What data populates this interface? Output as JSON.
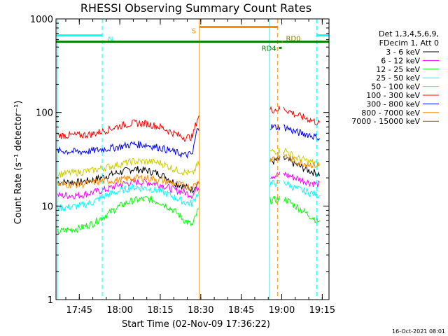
{
  "chart_data": {
    "type": "line",
    "title": "RHESSI Observing Summary Count Rates",
    "xlabel": "Start Time (02-Nov-09 17:36:22)",
    "ylabel": "Count Rate (s⁻¹ detector⁻¹)",
    "y_scale": "log",
    "ylim": [
      1,
      1000
    ],
    "xlim": [
      "17:36:22",
      "19:17:30"
    ],
    "x_ticks": [
      "17:45",
      "18:00",
      "18:15",
      "18:30",
      "18:45",
      "19:00",
      "19:15"
    ],
    "y_ticks": [
      "1",
      "10",
      "100",
      "1000"
    ],
    "legend_header": [
      "Det 1,3,4,5,6,9,",
      "FDecim 1, Att 0"
    ],
    "legend_position": "right",
    "footer_date": "16-Oct-2021 08:01",
    "data_gaps": [
      [
        "18:29:30",
        "18:55:30"
      ],
      [
        "18:59:30",
        "19:00:30"
      ]
    ],
    "series": [
      {
        "name": "3 - 6 keV",
        "color": "#000000",
        "x": [
          "17:37",
          "17:45",
          "17:50",
          "17:55",
          "18:00",
          "18:05",
          "18:10",
          "18:15",
          "18:20",
          "18:24",
          "18:27",
          "18:29",
          "19:01",
          "19:05",
          "19:10",
          "19:14"
        ],
        "values": [
          18,
          18,
          19,
          21,
          23,
          25,
          24,
          22,
          18,
          16,
          15,
          18,
          32,
          28,
          24,
          22
        ]
      },
      {
        "name": "6 - 12 keV",
        "color": "#ff00ff",
        "x": [
          "17:37",
          "17:45",
          "17:50",
          "17:55",
          "18:00",
          "18:05",
          "18:10",
          "18:15",
          "18:20",
          "18:24",
          "18:27",
          "18:29",
          "19:01",
          "19:05",
          "19:10",
          "19:14"
        ],
        "values": [
          13,
          13,
          14,
          15,
          17,
          18,
          18,
          17,
          15,
          14,
          13,
          16,
          22,
          20,
          18,
          17
        ]
      },
      {
        "name": "12 - 25 keV",
        "color": "#00ff00",
        "x": [
          "17:37",
          "17:40",
          "17:45",
          "17:50",
          "17:55",
          "18:00",
          "18:05",
          "18:10",
          "18:15",
          "18:20",
          "18:24",
          "18:27",
          "18:29",
          "19:01",
          "19:05",
          "19:10",
          "19:14"
        ],
        "values": [
          5.3,
          5.5,
          5.8,
          6.5,
          8,
          10,
          11.5,
          12,
          11,
          9,
          7,
          6.2,
          9,
          12,
          10,
          8,
          6.8
        ]
      },
      {
        "name": "25 - 50 keV",
        "color": "#00ffff",
        "x": [
          "17:37",
          "17:45",
          "17:50",
          "17:55",
          "18:00",
          "18:05",
          "18:10",
          "18:15",
          "18:20",
          "18:24",
          "18:27",
          "18:29",
          "19:01",
          "19:05",
          "19:10",
          "19:14"
        ],
        "values": [
          9.5,
          10,
          11,
          13,
          14.5,
          16,
          15.5,
          14.5,
          12.5,
          11,
          10.5,
          14,
          18,
          15.5,
          14,
          13
        ]
      },
      {
        "name": "50 - 100 keV",
        "color": "#cccc00",
        "x": [
          "17:37",
          "17:45",
          "17:50",
          "17:55",
          "18:00",
          "18:05",
          "18:10",
          "18:15",
          "18:20",
          "18:24",
          "18:27",
          "18:29",
          "19:01",
          "19:05",
          "19:10",
          "19:14"
        ],
        "values": [
          22,
          23,
          24,
          26,
          28,
          30,
          30,
          29,
          25,
          23,
          22,
          28,
          40,
          33,
          30,
          28
        ]
      },
      {
        "name": "100 - 300 keV",
        "color": "#ff0000",
        "x": [
          "17:37",
          "17:45",
          "17:50",
          "17:55",
          "18:00",
          "18:05",
          "18:10",
          "18:15",
          "18:20",
          "18:24",
          "18:27",
          "18:29",
          "19:01",
          "19:05",
          "19:10",
          "19:14"
        ],
        "values": [
          57,
          57,
          59,
          65,
          72,
          77,
          76,
          70,
          60,
          54,
          55,
          90,
          110,
          95,
          85,
          76
        ]
      },
      {
        "name": "300 - 800 keV",
        "color": "#0000ff",
        "x": [
          "17:37",
          "17:45",
          "17:50",
          "17:55",
          "18:00",
          "18:05",
          "18:10",
          "18:15",
          "18:20",
          "18:24",
          "18:27",
          "18:29",
          "19:01",
          "19:05",
          "19:10",
          "19:14"
        ],
        "values": [
          39,
          38,
          39,
          41,
          43,
          46,
          45,
          42,
          38,
          35,
          36,
          70,
          70,
          62,
          58,
          53
        ]
      },
      {
        "name": "800 - 7000 keV",
        "color": "#ff8c00",
        "x": [
          "17:37",
          "17:45",
          "17:50",
          "17:55",
          "18:00",
          "18:05",
          "18:10",
          "18:15",
          "18:20",
          "18:24",
          "18:27",
          "18:29",
          "19:01",
          "19:05",
          "19:10",
          "19:14"
        ],
        "values": [
          17,
          17,
          18,
          18.5,
          19,
          20,
          20,
          19,
          17.5,
          16.5,
          16,
          18,
          35,
          30,
          28,
          27
        ]
      },
      {
        "name": "7000 - 15000 keV",
        "color": "#8b6914",
        "x": [],
        "values": []
      }
    ],
    "flags": [
      {
        "label": "N",
        "color": "#00ffff",
        "level": 665,
        "start": "17:36:22",
        "end": "17:53:30",
        "dashed_end": true
      },
      {
        "label": "",
        "color": "#00ffff",
        "level": 665,
        "start": "19:13:00",
        "end": "19:17:30",
        "dashed_start": true
      },
      {
        "label": "S",
        "color": "#ff8c00",
        "level": 820,
        "start": "18:29:30",
        "end": "18:58:30",
        "dashed_end": true
      },
      {
        "label": "",
        "color": "#008000",
        "level": 570,
        "start": "17:36:22",
        "end": "19:17:30"
      },
      {
        "label": "RD4",
        "color": "#008000",
        "level": 490,
        "start": "18:59:00",
        "end": "19:00:00"
      },
      {
        "label": "RD0",
        "color": "#808000",
        "level": 570,
        "start": "19:00:00",
        "end": "19:00:30"
      }
    ],
    "vlines": [
      {
        "time": "17:36:50",
        "color": "#00ffff",
        "style": "solid"
      },
      {
        "time": "17:53:30",
        "color": "#00ffff",
        "style": "dashed"
      },
      {
        "time": "18:29:30",
        "color": "#ff8c00",
        "style": "solid"
      },
      {
        "time": "18:55:30",
        "color": "#00ffff",
        "style": "solid"
      },
      {
        "time": "18:58:30",
        "color": "#ff8c00",
        "style": "dashed"
      },
      {
        "time": "19:13:00",
        "color": "#00ffff",
        "style": "dashed"
      }
    ]
  }
}
